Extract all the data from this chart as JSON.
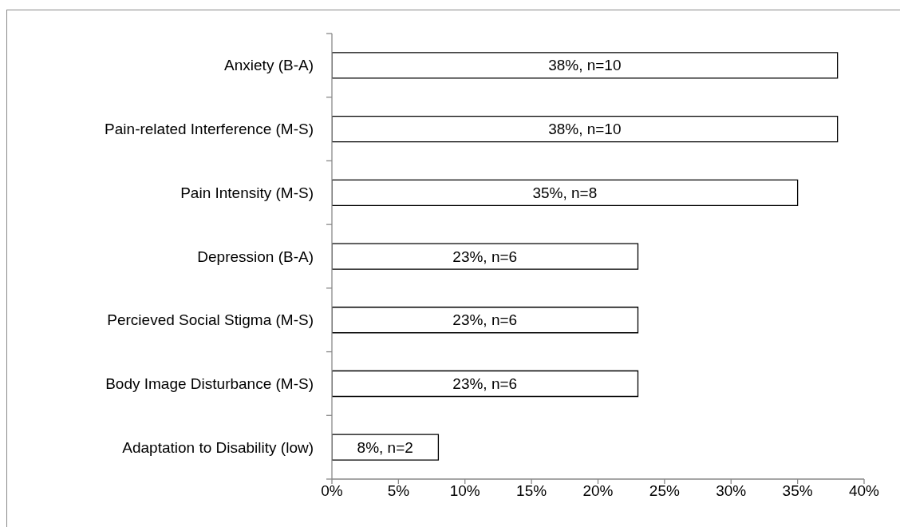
{
  "chart_data": {
    "type": "bar",
    "orientation": "horizontal",
    "categories": [
      "Anxiety (B-A)",
      "Pain-related Interference (M-S)",
      "Pain Intensity (M-S)",
      "Depression (B-A)",
      "Percieved Social Stigma (M-S)",
      "Body Image Disturbance (M-S)",
      "Adaptation to Disability (low)"
    ],
    "values": [
      38,
      38,
      35,
      23,
      23,
      23,
      8
    ],
    "value_labels": [
      "38%, n=10",
      "38%, n=10",
      "35%, n=8",
      "23%, n=6",
      "23%, n=6",
      "23%, n=6",
      "8%, n=2"
    ],
    "color": "#ffffff",
    "xlim": [
      0,
      40
    ],
    "xticks": [
      {
        "value": 0,
        "label": "0%"
      },
      {
        "value": 5,
        "label": "5%"
      },
      {
        "value": 10,
        "label": "10%"
      },
      {
        "value": 15,
        "label": "15%"
      },
      {
        "value": 20,
        "label": "20%"
      },
      {
        "value": 25,
        "label": "25%"
      },
      {
        "value": 30,
        "label": "30%"
      },
      {
        "value": 35,
        "label": "35%"
      },
      {
        "value": 40,
        "label": "40%"
      }
    ]
  }
}
